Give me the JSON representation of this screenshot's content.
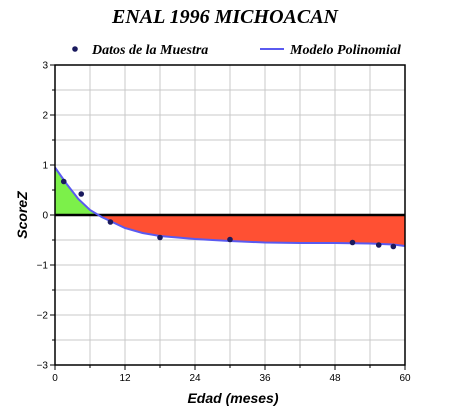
{
  "chart_data": {
    "type": "line",
    "title": "ENAL 1996 MICHOACAN",
    "xlabel": "Edad (meses)",
    "ylabel": "ScoreZ",
    "xlim": [
      0,
      60
    ],
    "ylim": [
      -3,
      3
    ],
    "x_ticks": [
      0,
      12,
      24,
      36,
      48,
      60
    ],
    "y_ticks": [
      -3,
      -2,
      -1,
      0,
      1,
      2,
      3
    ],
    "x_tick_labels": [
      "0",
      "12",
      "24",
      "36",
      "48",
      "60"
    ],
    "y_tick_labels": [
      "−3",
      "−2",
      "−1",
      "0",
      "1",
      "2",
      "3"
    ],
    "grid": true,
    "legend_position": "top",
    "series": [
      {
        "name": "Datos de la Muestra",
        "kind": "scatter",
        "color": "#1a1a5e",
        "points": [
          {
            "x": 1.5,
            "y": 0.67
          },
          {
            "x": 4.5,
            "y": 0.42
          },
          {
            "x": 9.5,
            "y": -0.14
          },
          {
            "x": 18,
            "y": -0.45
          },
          {
            "x": 30,
            "y": -0.49
          },
          {
            "x": 51,
            "y": -0.55
          },
          {
            "x": 55.5,
            "y": -0.6
          },
          {
            "x": 58,
            "y": -0.63
          }
        ]
      },
      {
        "name": "Modelo Polinomial",
        "kind": "line",
        "color": "#5a5af0",
        "points": [
          {
            "x": 0,
            "y": 0.95
          },
          {
            "x": 2,
            "y": 0.62
          },
          {
            "x": 4,
            "y": 0.32
          },
          {
            "x": 6,
            "y": 0.1
          },
          {
            "x": 8,
            "y": -0.04
          },
          {
            "x": 10,
            "y": -0.15
          },
          {
            "x": 12,
            "y": -0.26
          },
          {
            "x": 15,
            "y": -0.36
          },
          {
            "x": 18,
            "y": -0.42
          },
          {
            "x": 24,
            "y": -0.48
          },
          {
            "x": 30,
            "y": -0.52
          },
          {
            "x": 36,
            "y": -0.55
          },
          {
            "x": 42,
            "y": -0.56
          },
          {
            "x": 48,
            "y": -0.56
          },
          {
            "x": 54,
            "y": -0.57
          },
          {
            "x": 58,
            "y": -0.59
          },
          {
            "x": 60,
            "y": -0.62
          }
        ]
      }
    ],
    "fills": {
      "positive_color": "#7cf04a",
      "negative_color": "#ff5033"
    }
  }
}
